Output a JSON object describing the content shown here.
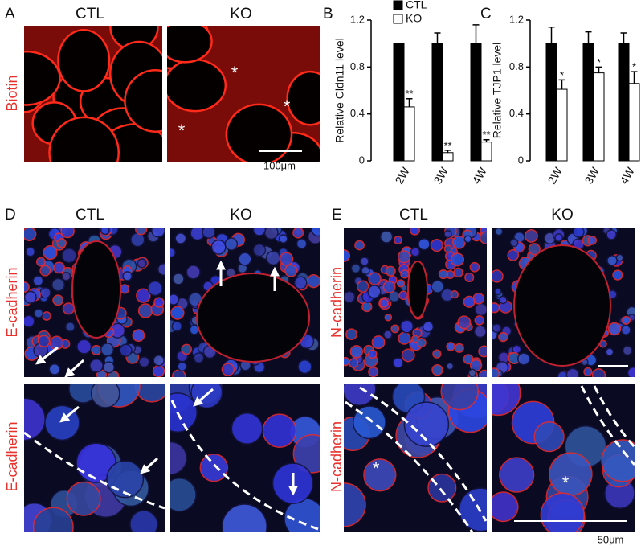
{
  "panel_a": {
    "label": "A",
    "groups": [
      "CTL",
      "KO"
    ],
    "stain": "Biotin",
    "scale_bar": "100μm",
    "marks": [
      "*",
      "*",
      "*"
    ]
  },
  "chart_data": [
    {
      "type": "bar",
      "panel": "B",
      "ylabel": "Relative Cldn11 level",
      "categories": [
        "2W",
        "3W",
        "4W"
      ],
      "series": [
        {
          "name": "CTL",
          "color": "#000000",
          "values": [
            1.0,
            1.0,
            1.0
          ],
          "errors": [
            0,
            0.09,
            0.16
          ]
        },
        {
          "name": "KO",
          "color": "#ffffff",
          "values": [
            0.46,
            0.07,
            0.16
          ],
          "errors": [
            0.07,
            0.02,
            0.02
          ]
        }
      ],
      "annotations": [
        "**",
        "**",
        "**"
      ],
      "ylim": [
        0,
        1.2
      ],
      "yticks": [
        0,
        0.4,
        0.8,
        1.2
      ],
      "legend": "top"
    },
    {
      "type": "bar",
      "panel": "C",
      "ylabel": "Relative TJP1 level",
      "categories": [
        "2W",
        "3W",
        "4W"
      ],
      "series": [
        {
          "name": "CTL",
          "color": "#000000",
          "values": [
            1.0,
            1.0,
            1.0
          ],
          "errors": [
            0.14,
            0.1,
            0.09
          ]
        },
        {
          "name": "KO",
          "color": "#ffffff",
          "values": [
            0.61,
            0.75,
            0.66
          ],
          "errors": [
            0.08,
            0.05,
            0.1
          ]
        }
      ],
      "annotations": [
        "*",
        "*",
        "*"
      ],
      "ylim": [
        0,
        1.2
      ],
      "yticks": [
        0,
        0.4,
        0.8,
        1.2
      ]
    }
  ],
  "panel_d": {
    "label": "D",
    "groups": [
      "CTL",
      "KO"
    ],
    "stain": [
      "E-cadherin",
      "E-cadherin"
    ]
  },
  "panel_e": {
    "label": "E",
    "groups": [
      "CTL",
      "KO"
    ],
    "stain": [
      "N-cadherin",
      "N-cadherin"
    ],
    "marks": [
      "*",
      "*"
    ],
    "scale_bar": "50μm"
  }
}
